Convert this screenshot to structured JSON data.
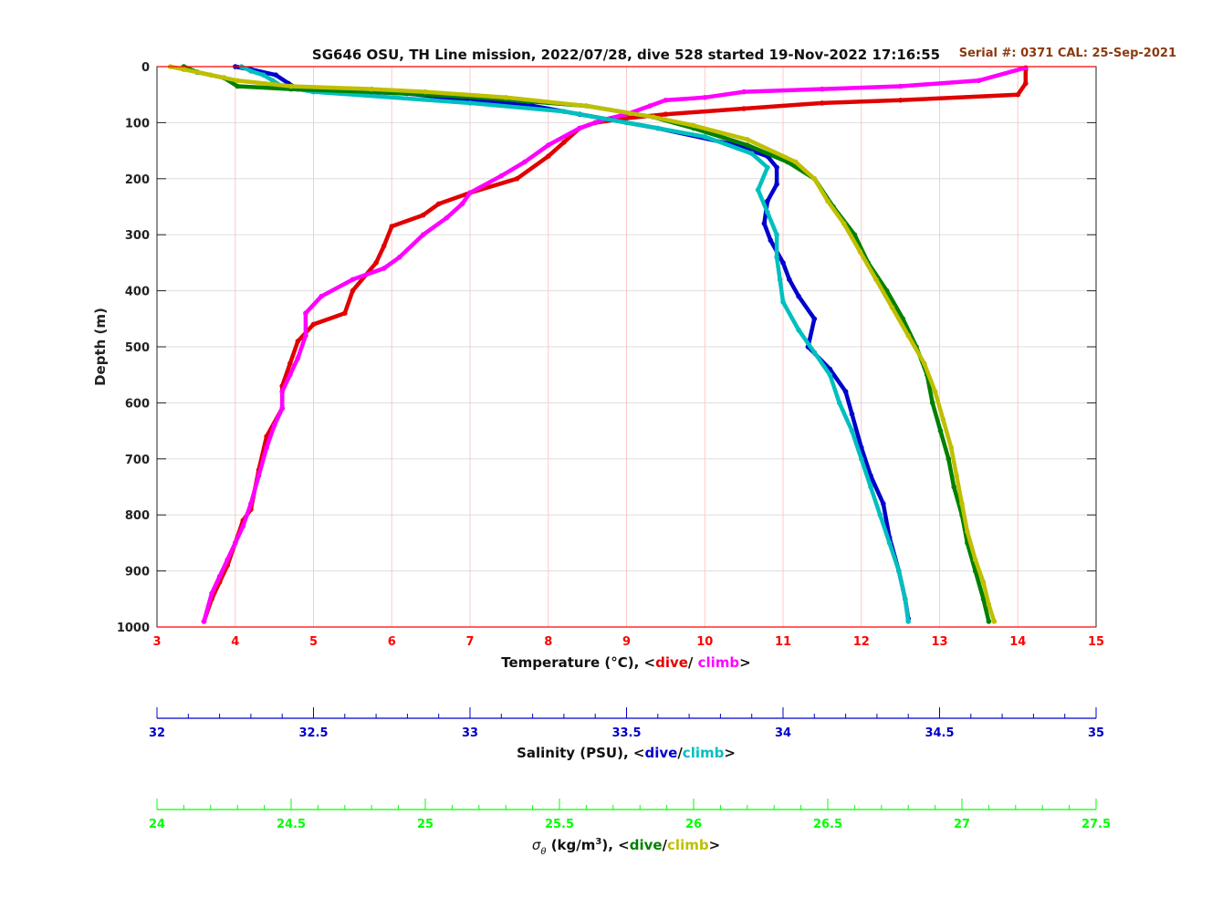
{
  "header": {
    "title": "SG646 OSU, TH Line mission, 2022/07/28, dive 528 started 19-Nov-2022 17:16:55",
    "serial": "Serial #: 0371  CAL: 25-Sep-2021"
  },
  "labels": {
    "ylabel": "Depth (m)",
    "temp_prefix": "Temperature (°C), <",
    "temp_dive": "dive",
    "temp_sep": "/ ",
    "temp_climb": "climb",
    "temp_suffix": ">",
    "sal_prefix": "Salinity (PSU), <",
    "sal_dive": "dive",
    "sal_sep": "/",
    "sal_climb": "climb",
    "sal_suffix": ">",
    "sig_prefix_sym": "σ",
    "sig_prefix_sub": "θ",
    "sig_prefix_rest": " (kg/m",
    "sig_prefix_sup": "3",
    "sig_prefix_end": "), <",
    "sig_dive": "dive",
    "sig_sep": "/",
    "sig_climb": "climb",
    "sig_suffix": ">"
  },
  "colors": {
    "temp_axis": "#ff0000",
    "temp_dive": "#e00000",
    "temp_climb": "#ff00ff",
    "sal_axis": "#0000cc",
    "sal_dive": "#0000cc",
    "sal_climb": "#00bfbf",
    "sig_axis": "#00ff00",
    "sig_dive": "#008000",
    "sig_climb": "#bfbf00",
    "serial": "#8b3a0f",
    "grid_v": "#ffc8c8",
    "grid_h": "#dddddd"
  },
  "chart_data": {
    "type": "scatter",
    "y": {
      "label": "Depth (m)",
      "range": [
        0,
        1000
      ],
      "reversed": true,
      "ticks": [
        0,
        100,
        200,
        300,
        400,
        500,
        600,
        700,
        800,
        900,
        1000
      ]
    },
    "axes": {
      "temperature": {
        "range": [
          3,
          15
        ],
        "ticks": [
          3,
          4,
          5,
          6,
          7,
          8,
          9,
          10,
          11,
          12,
          13,
          14,
          15
        ]
      },
      "salinity": {
        "range": [
          32,
          35
        ],
        "ticks": [
          32,
          32.5,
          33,
          33.5,
          34,
          34.5,
          35
        ]
      },
      "sigma": {
        "range": [
          24,
          27.5
        ],
        "ticks": [
          24,
          24.5,
          25,
          25.5,
          26,
          26.5,
          27,
          27.5
        ]
      }
    },
    "series": [
      {
        "name": "dive",
        "variable": "temperature",
        "points": [
          [
            14.1,
            5
          ],
          [
            14.1,
            30
          ],
          [
            14.0,
            50
          ],
          [
            12.5,
            60
          ],
          [
            11.5,
            65
          ],
          [
            10.5,
            75
          ],
          [
            9.5,
            85
          ],
          [
            9.0,
            92
          ],
          [
            8.6,
            100
          ],
          [
            8.4,
            110
          ],
          [
            8.2,
            135
          ],
          [
            8.0,
            160
          ],
          [
            7.6,
            200
          ],
          [
            7.0,
            225
          ],
          [
            6.6,
            245
          ],
          [
            6.4,
            265
          ],
          [
            6.0,
            285
          ],
          [
            5.9,
            320
          ],
          [
            5.8,
            350
          ],
          [
            5.5,
            400
          ],
          [
            5.4,
            440
          ],
          [
            5.0,
            460
          ],
          [
            4.8,
            490
          ],
          [
            4.7,
            530
          ],
          [
            4.6,
            570
          ],
          [
            4.6,
            610
          ],
          [
            4.4,
            660
          ],
          [
            4.3,
            720
          ],
          [
            4.2,
            790
          ],
          [
            4.1,
            810
          ],
          [
            4.0,
            850
          ],
          [
            3.9,
            890
          ],
          [
            3.8,
            920
          ],
          [
            3.7,
            950
          ],
          [
            3.6,
            990
          ]
        ]
      },
      {
        "name": "climb",
        "variable": "temperature",
        "points": [
          [
            14.1,
            2
          ],
          [
            13.5,
            25
          ],
          [
            12.5,
            35
          ],
          [
            11.5,
            40
          ],
          [
            10.5,
            45
          ],
          [
            10.0,
            55
          ],
          [
            9.5,
            60
          ],
          [
            9.3,
            70
          ],
          [
            9.0,
            85
          ],
          [
            8.7,
            95
          ],
          [
            8.4,
            110
          ],
          [
            8.0,
            140
          ],
          [
            7.7,
            170
          ],
          [
            7.4,
            195
          ],
          [
            7.0,
            225
          ],
          [
            6.9,
            245
          ],
          [
            6.7,
            270
          ],
          [
            6.4,
            300
          ],
          [
            6.1,
            340
          ],
          [
            5.9,
            360
          ],
          [
            5.5,
            380
          ],
          [
            5.1,
            410
          ],
          [
            4.9,
            440
          ],
          [
            4.9,
            480
          ],
          [
            4.8,
            520
          ],
          [
            4.7,
            550
          ],
          [
            4.6,
            580
          ],
          [
            4.6,
            610
          ],
          [
            4.5,
            640
          ],
          [
            4.4,
            680
          ],
          [
            4.3,
            730
          ],
          [
            4.2,
            780
          ],
          [
            4.1,
            820
          ],
          [
            4.0,
            850
          ],
          [
            3.9,
            880
          ],
          [
            3.8,
            910
          ],
          [
            3.7,
            940
          ],
          [
            3.6,
            990
          ]
        ]
      },
      {
        "name": "dive",
        "variable": "salinity",
        "points": [
          [
            32.25,
            0
          ],
          [
            32.3,
            5
          ],
          [
            32.38,
            15
          ],
          [
            32.42,
            30
          ],
          [
            32.45,
            40
          ],
          [
            32.8,
            48
          ],
          [
            33.0,
            60
          ],
          [
            33.2,
            70
          ],
          [
            33.35,
            85
          ],
          [
            33.45,
            95
          ],
          [
            33.6,
            110
          ],
          [
            33.85,
            140
          ],
          [
            33.95,
            160
          ],
          [
            33.98,
            180
          ],
          [
            33.98,
            210
          ],
          [
            33.95,
            240
          ],
          [
            33.94,
            280
          ],
          [
            33.96,
            310
          ],
          [
            34.0,
            350
          ],
          [
            34.02,
            380
          ],
          [
            34.05,
            410
          ],
          [
            34.1,
            450
          ],
          [
            34.08,
            500
          ],
          [
            34.15,
            540
          ],
          [
            34.2,
            580
          ],
          [
            34.22,
            620
          ],
          [
            34.25,
            680
          ],
          [
            34.28,
            730
          ],
          [
            34.32,
            780
          ],
          [
            34.34,
            840
          ],
          [
            34.37,
            900
          ],
          [
            34.39,
            950
          ],
          [
            34.4,
            985
          ]
        ]
      },
      {
        "name": "climb",
        "variable": "salinity",
        "points": [
          [
            32.27,
            0
          ],
          [
            32.3,
            8
          ],
          [
            32.34,
            15
          ],
          [
            32.37,
            25
          ],
          [
            32.4,
            35
          ],
          [
            32.5,
            45
          ],
          [
            33.0,
            65
          ],
          [
            33.3,
            80
          ],
          [
            33.5,
            100
          ],
          [
            33.6,
            110
          ],
          [
            33.75,
            125
          ],
          [
            33.9,
            155
          ],
          [
            33.95,
            180
          ],
          [
            33.92,
            220
          ],
          [
            33.95,
            260
          ],
          [
            33.98,
            300
          ],
          [
            33.98,
            340
          ],
          [
            33.99,
            380
          ],
          [
            34.0,
            420
          ],
          [
            34.05,
            470
          ],
          [
            34.1,
            510
          ],
          [
            34.15,
            550
          ],
          [
            34.18,
            600
          ],
          [
            34.22,
            650
          ],
          [
            34.25,
            700
          ],
          [
            34.28,
            750
          ],
          [
            34.31,
            800
          ],
          [
            34.34,
            850
          ],
          [
            34.37,
            900
          ],
          [
            34.39,
            950
          ],
          [
            34.4,
            990
          ]
        ]
      },
      {
        "name": "dive",
        "variable": "sigma",
        "points": [
          [
            24.1,
            0
          ],
          [
            24.15,
            10
          ],
          [
            24.25,
            20
          ],
          [
            24.3,
            35
          ],
          [
            24.5,
            40
          ],
          [
            24.8,
            45
          ],
          [
            25.2,
            55
          ],
          [
            25.6,
            70
          ],
          [
            25.85,
            90
          ],
          [
            26.0,
            110
          ],
          [
            26.2,
            140
          ],
          [
            26.35,
            170
          ],
          [
            26.45,
            200
          ],
          [
            26.52,
            250
          ],
          [
            26.6,
            300
          ],
          [
            26.65,
            350
          ],
          [
            26.72,
            400
          ],
          [
            26.78,
            450
          ],
          [
            26.83,
            500
          ],
          [
            26.87,
            550
          ],
          [
            26.89,
            600
          ],
          [
            26.92,
            650
          ],
          [
            26.95,
            700
          ],
          [
            26.97,
            750
          ],
          [
            27.0,
            800
          ],
          [
            27.02,
            850
          ],
          [
            27.05,
            900
          ],
          [
            27.08,
            950
          ],
          [
            27.1,
            990
          ]
        ]
      },
      {
        "name": "climb",
        "variable": "sigma",
        "points": [
          [
            24.05,
            0
          ],
          [
            24.1,
            5
          ],
          [
            24.2,
            15
          ],
          [
            24.3,
            25
          ],
          [
            24.5,
            35
          ],
          [
            24.8,
            40
          ],
          [
            25.0,
            45
          ],
          [
            25.3,
            55
          ],
          [
            25.6,
            70
          ],
          [
            25.85,
            90
          ],
          [
            26.0,
            105
          ],
          [
            26.2,
            130
          ],
          [
            26.38,
            170
          ],
          [
            26.45,
            200
          ],
          [
            26.5,
            240
          ],
          [
            26.56,
            280
          ],
          [
            26.62,
            330
          ],
          [
            26.68,
            380
          ],
          [
            26.74,
            430
          ],
          [
            26.8,
            480
          ],
          [
            26.86,
            530
          ],
          [
            26.9,
            580
          ],
          [
            26.93,
            630
          ],
          [
            26.96,
            680
          ],
          [
            26.98,
            730
          ],
          [
            27.0,
            780
          ],
          [
            27.02,
            830
          ],
          [
            27.05,
            880
          ],
          [
            27.08,
            920
          ],
          [
            27.1,
            960
          ],
          [
            27.12,
            990
          ]
        ]
      }
    ]
  }
}
